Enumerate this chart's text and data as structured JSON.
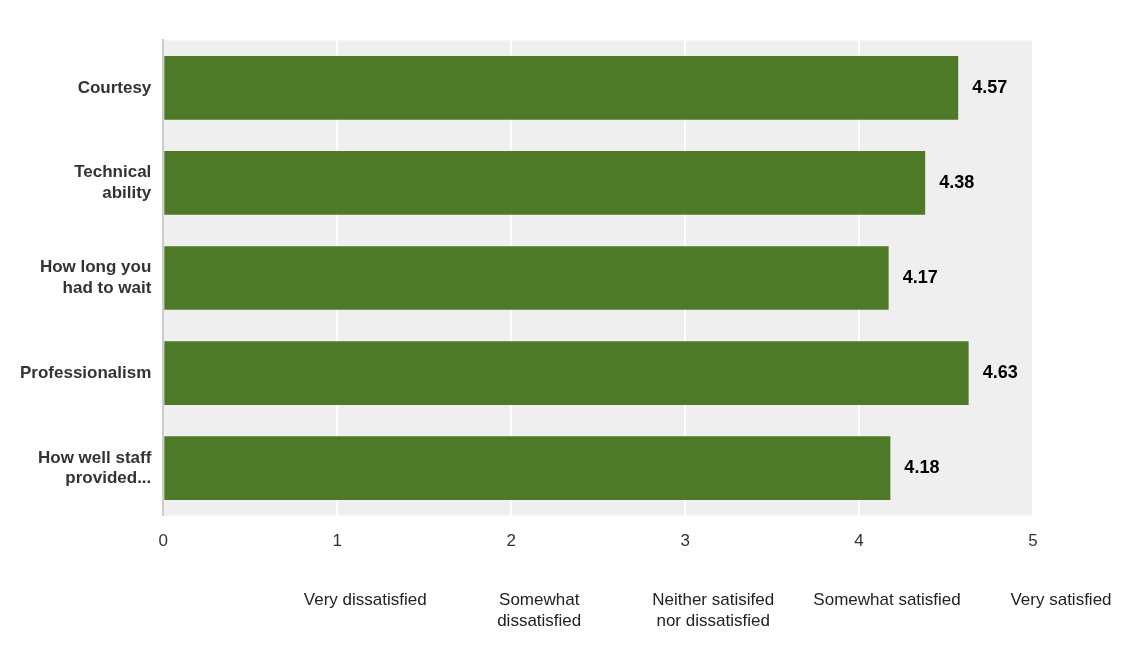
{
  "chart_data": {
    "type": "bar",
    "orientation": "horizontal",
    "categories": [
      "Courtesy",
      "Technical ability",
      "How long you had to wait",
      "Professionalism",
      "How well staff provided..."
    ],
    "values": [
      4.57,
      4.38,
      4.17,
      4.63,
      4.18
    ],
    "color": "#4e7a28",
    "xlim": [
      0,
      5
    ],
    "xticks": [
      0,
      1,
      2,
      3,
      4,
      5
    ],
    "grid": "x",
    "data_labels": true,
    "legend": false,
    "annotations": [
      "Very dissatisfied",
      "Somewhat dissatisfied",
      "Neither satisifed nor dissatisfied",
      "Somewhat satisfied",
      "Very satisfied"
    ]
  }
}
